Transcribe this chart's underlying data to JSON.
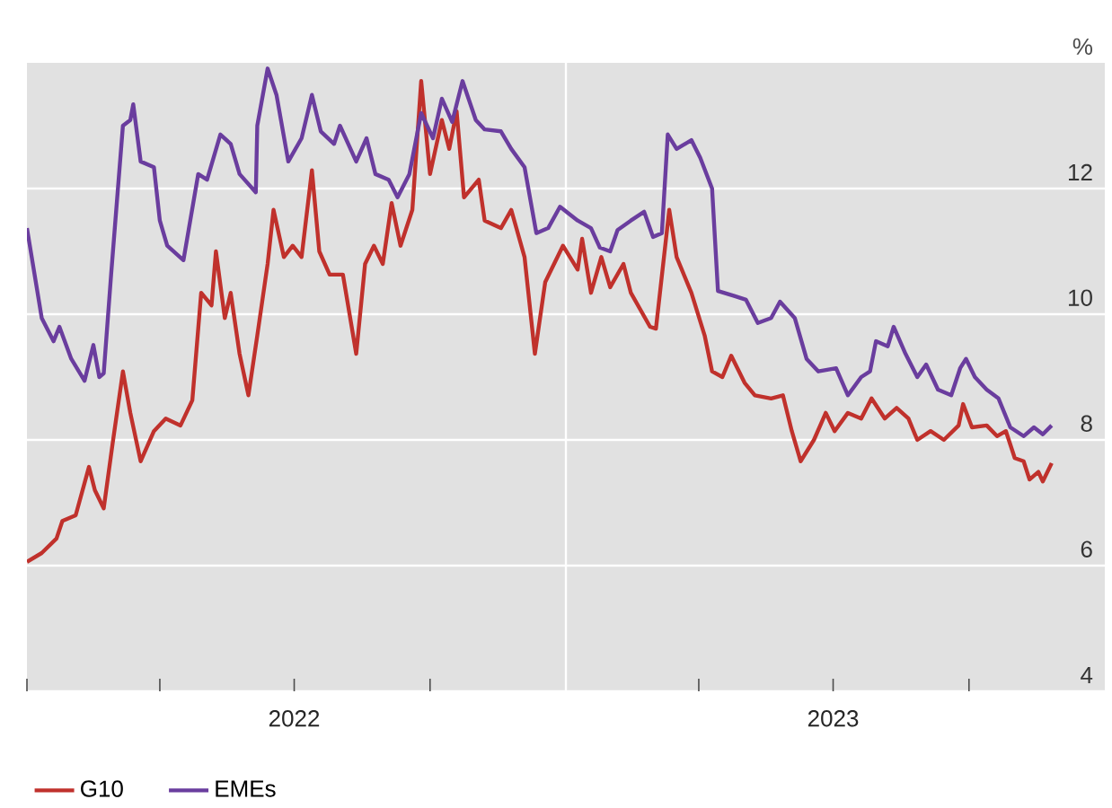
{
  "chart_data": {
    "type": "line",
    "ylabel": "%",
    "xlim": [
      "2022-01-01",
      "2024-01-01"
    ],
    "ylim": [
      4,
      14
    ],
    "xticks": [
      {
        "value": "2022-01-01",
        "label": null
      },
      {
        "value": "2022-04-01",
        "label": null
      },
      {
        "value": "2022-07-01",
        "label": "2022"
      },
      {
        "value": "2022-10-01",
        "label": null
      },
      {
        "value": "2023-01-01",
        "label": null
      },
      {
        "value": "2023-04-01",
        "label": null
      },
      {
        "value": "2023-07-01",
        "label": "2023"
      },
      {
        "value": "2023-10-01",
        "label": null
      }
    ],
    "yticks": [
      4,
      6,
      8,
      10,
      12
    ],
    "grid": "y",
    "legend": "bottom left",
    "ref_lines": [
      {
        "axis": "x",
        "value": "2023-01-01",
        "color": "#ffffff"
      }
    ],
    "series": [
      {
        "name": "G10",
        "color": "#c0312c",
        "x": [
          "2022-01-01",
          "2022-01-11",
          "2022-01-21",
          "2022-01-25",
          "2022-02-03",
          "2022-02-12",
          "2022-02-16",
          "2022-02-22",
          "2022-02-28",
          "2022-03-07",
          "2022-03-12",
          "2022-03-19",
          "2022-03-28",
          "2022-04-05",
          "2022-04-15",
          "2022-04-23",
          "2022-04-29",
          "2022-05-06",
          "2022-05-09",
          "2022-05-15",
          "2022-05-19",
          "2022-05-25",
          "2022-05-31",
          "2022-06-06",
          "2022-06-13",
          "2022-06-17",
          "2022-06-24",
          "2022-06-30",
          "2022-07-06",
          "2022-07-13",
          "2022-07-18",
          "2022-07-25",
          "2022-08-03",
          "2022-08-12",
          "2022-08-18",
          "2022-08-24",
          "2022-08-30",
          "2022-09-05",
          "2022-09-11",
          "2022-09-19",
          "2022-09-25",
          "2022-10-01",
          "2022-10-09",
          "2022-10-14",
          "2022-10-19",
          "2022-10-24",
          "2022-11-03",
          "2022-11-07",
          "2022-11-18",
          "2022-11-25",
          "2022-12-04",
          "2022-12-11",
          "2022-12-18",
          "2022-12-30",
          "2023-01-09",
          "2023-01-12",
          "2023-01-18",
          "2023-01-25",
          "2023-01-31",
          "2023-02-09",
          "2023-02-14",
          "2023-02-27",
          "2023-03-03",
          "2023-03-12",
          "2023-03-17",
          "2023-03-27",
          "2023-04-05",
          "2023-04-10",
          "2023-04-17",
          "2023-04-23",
          "2023-05-02",
          "2023-05-09",
          "2023-05-20",
          "2023-05-28",
          "2023-06-03",
          "2023-06-09",
          "2023-06-18",
          "2023-06-26",
          "2023-07-02",
          "2023-07-11",
          "2023-07-20",
          "2023-07-27",
          "2023-08-05",
          "2023-08-13",
          "2023-08-21",
          "2023-08-27",
          "2023-09-05",
          "2023-09-14",
          "2023-09-24",
          "2023-09-27",
          "2023-10-03",
          "2023-10-13",
          "2023-10-20",
          "2023-10-26",
          "2023-11-01",
          "2023-11-07",
          "2023-11-11",
          "2023-11-17",
          "2023-11-20",
          "2023-11-26"
        ],
        "values": [
          6.06,
          6.2,
          6.43,
          6.71,
          6.8,
          7.57,
          7.2,
          6.91,
          7.94,
          9.09,
          8.43,
          7.66,
          8.14,
          8.34,
          8.23,
          8.63,
          10.34,
          10.14,
          11.0,
          9.94,
          10.34,
          9.37,
          8.71,
          9.66,
          10.8,
          11.66,
          10.91,
          11.09,
          10.91,
          12.29,
          11.0,
          10.63,
          10.63,
          9.37,
          10.8,
          11.09,
          10.8,
          11.77,
          11.09,
          11.66,
          13.71,
          12.23,
          13.09,
          12.63,
          13.23,
          11.86,
          12.14,
          11.49,
          11.37,
          11.66,
          10.91,
          9.37,
          10.51,
          11.09,
          10.71,
          11.2,
          10.34,
          10.91,
          10.43,
          10.8,
          10.34,
          9.8,
          9.77,
          11.66,
          10.91,
          10.34,
          9.66,
          9.09,
          9.0,
          9.34,
          8.91,
          8.71,
          8.66,
          8.71,
          8.14,
          7.66,
          8.0,
          8.43,
          8.14,
          8.43,
          8.34,
          8.66,
          8.34,
          8.51,
          8.34,
          8.0,
          8.14,
          8.0,
          8.23,
          8.57,
          8.2,
          8.23,
          8.06,
          8.14,
          7.71,
          7.66,
          7.37,
          7.49,
          7.34,
          7.63
        ]
      },
      {
        "name": "EMEs",
        "color": "#6a3d9e",
        "x": [
          "2022-01-01",
          "2022-01-11",
          "2022-01-19",
          "2022-01-23",
          "2022-01-31",
          "2022-02-09",
          "2022-02-15",
          "2022-02-19",
          "2022-02-22",
          "2022-02-27",
          "2022-03-07",
          "2022-03-12",
          "2022-03-14",
          "2022-03-19",
          "2022-03-28",
          "2022-04-01",
          "2022-04-06",
          "2022-04-17",
          "2022-04-27",
          "2022-05-03",
          "2022-05-12",
          "2022-05-19",
          "2022-05-25",
          "2022-06-05",
          "2022-06-06",
          "2022-06-13",
          "2022-06-19",
          "2022-06-27",
          "2022-07-06",
          "2022-07-13",
          "2022-07-19",
          "2022-07-28",
          "2022-08-01",
          "2022-08-12",
          "2022-08-19",
          "2022-08-25",
          "2022-09-03",
          "2022-09-09",
          "2022-09-17",
          "2022-09-25",
          "2022-10-03",
          "2022-10-09",
          "2022-10-16",
          "2022-10-23",
          "2022-11-01",
          "2022-11-07",
          "2022-11-18",
          "2022-11-25",
          "2022-12-04",
          "2022-12-12",
          "2022-12-20",
          "2022-12-28",
          "2023-01-09",
          "2023-01-18",
          "2023-01-24",
          "2023-01-31",
          "2023-02-05",
          "2023-02-14",
          "2023-02-23",
          "2023-03-01",
          "2023-03-07",
          "2023-03-11",
          "2023-03-17",
          "2023-03-27",
          "2023-04-02",
          "2023-04-10",
          "2023-04-14",
          "2023-04-25",
          "2023-05-03",
          "2023-05-11",
          "2023-05-20",
          "2023-05-26",
          "2023-06-05",
          "2023-06-13",
          "2023-06-21",
          "2023-07-03",
          "2023-07-11",
          "2023-07-20",
          "2023-07-26",
          "2023-07-30",
          "2023-08-07",
          "2023-08-11",
          "2023-08-19",
          "2023-08-27",
          "2023-09-02",
          "2023-09-10",
          "2023-09-19",
          "2023-09-25",
          "2023-09-29",
          "2023-10-05",
          "2023-10-13",
          "2023-10-21",
          "2023-10-29",
          "2023-11-07",
          "2023-11-14",
          "2023-11-20",
          "2023-11-26"
        ],
        "values": [
          11.37,
          9.94,
          9.57,
          9.8,
          9.29,
          8.94,
          9.51,
          9.0,
          9.06,
          10.63,
          13.0,
          13.09,
          13.34,
          12.43,
          12.34,
          11.49,
          11.09,
          10.86,
          12.23,
          12.14,
          12.86,
          12.71,
          12.23,
          11.94,
          13.0,
          13.91,
          13.49,
          12.43,
          12.8,
          13.49,
          12.91,
          12.71,
          13.0,
          12.43,
          12.8,
          12.23,
          12.14,
          11.86,
          12.23,
          13.2,
          12.8,
          13.43,
          13.06,
          13.71,
          13.09,
          12.94,
          12.91,
          12.63,
          12.34,
          11.29,
          11.37,
          11.71,
          11.49,
          11.37,
          11.06,
          11.0,
          11.34,
          11.49,
          11.63,
          11.23,
          11.29,
          12.86,
          12.63,
          12.77,
          12.49,
          12.0,
          10.37,
          10.29,
          10.23,
          9.86,
          9.94,
          10.2,
          9.94,
          9.29,
          9.09,
          9.14,
          8.71,
          9.0,
          9.09,
          9.57,
          9.49,
          9.8,
          9.37,
          9.0,
          9.2,
          8.8,
          8.71,
          9.14,
          9.29,
          9.0,
          8.8,
          8.66,
          8.2,
          8.06,
          8.2,
          8.09,
          8.23
        ]
      }
    ]
  }
}
